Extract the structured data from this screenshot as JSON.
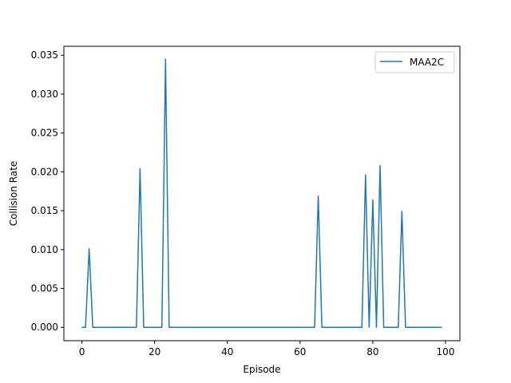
{
  "chart_data": {
    "type": "line",
    "title": "",
    "xlabel": "Episode",
    "ylabel": "Collision Rate",
    "xlim": [
      -4.95,
      103.95
    ],
    "ylim": [
      -0.00172,
      0.03615
    ],
    "x_ticks": [
      0,
      20,
      40,
      60,
      80,
      100
    ],
    "x_tick_labels": [
      "0",
      "20",
      "40",
      "60",
      "80",
      "100"
    ],
    "y_ticks": [
      0.0,
      0.005,
      0.01,
      0.015,
      0.02,
      0.025,
      0.03,
      0.035
    ],
    "y_tick_labels": [
      "0.000",
      "0.005",
      "0.010",
      "0.015",
      "0.020",
      "0.025",
      "0.030",
      "0.035"
    ],
    "grid": false,
    "legend_position": "top-right",
    "series": [
      {
        "name": "MAA2C",
        "color": "#1f77b4",
        "x": [
          0,
          1,
          2,
          3,
          4,
          5,
          6,
          7,
          8,
          9,
          10,
          11,
          12,
          13,
          14,
          15,
          16,
          17,
          18,
          19,
          20,
          21,
          22,
          23,
          24,
          25,
          26,
          27,
          28,
          29,
          30,
          31,
          32,
          33,
          34,
          35,
          36,
          37,
          38,
          39,
          40,
          41,
          42,
          43,
          44,
          45,
          46,
          47,
          48,
          49,
          50,
          51,
          52,
          53,
          54,
          55,
          56,
          57,
          58,
          59,
          60,
          61,
          62,
          63,
          64,
          65,
          66,
          67,
          68,
          69,
          70,
          71,
          72,
          73,
          74,
          75,
          76,
          77,
          78,
          79,
          80,
          81,
          82,
          83,
          84,
          85,
          86,
          87,
          88,
          89,
          90,
          91,
          92,
          93,
          94,
          95,
          96,
          97,
          98,
          99
        ],
        "y": [
          0,
          0,
          0.0101,
          0,
          0,
          0,
          0,
          0,
          0,
          0,
          0,
          0,
          0,
          0,
          0,
          0,
          0.0204,
          0,
          0,
          0,
          0,
          0,
          0,
          0.0345,
          0,
          0,
          0,
          0,
          0,
          0,
          0,
          0,
          0,
          0,
          0,
          0,
          0,
          0,
          0,
          0,
          0,
          0,
          0,
          0,
          0,
          0,
          0,
          0,
          0,
          0,
          0,
          0,
          0,
          0,
          0,
          0,
          0,
          0,
          0,
          0,
          0,
          0,
          0,
          0,
          0,
          0.0169,
          0,
          0,
          0,
          0,
          0,
          0,
          0,
          0,
          0,
          0,
          0,
          0,
          0.0196,
          0,
          0.0164,
          0,
          0.0208,
          0,
          0,
          0,
          0,
          0,
          0.0149,
          0,
          0,
          0,
          0,
          0,
          0,
          0,
          0,
          0,
          0,
          0
        ]
      }
    ]
  }
}
